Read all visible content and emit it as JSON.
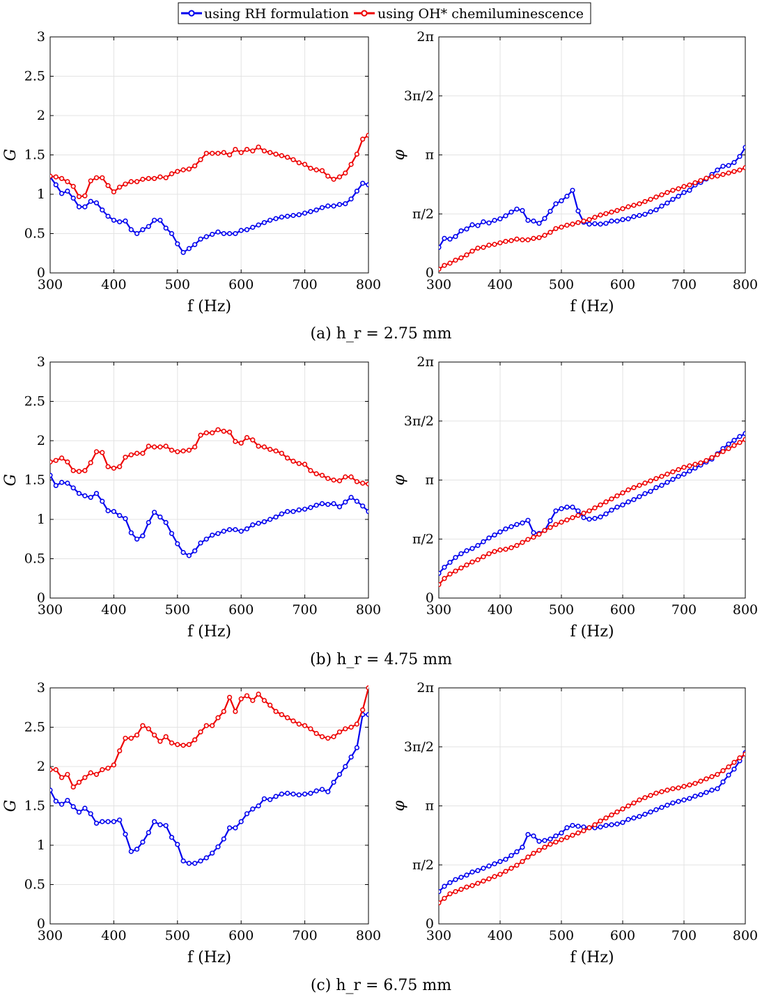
{
  "legend": {
    "items": [
      {
        "label": "using RH formulation",
        "color": "#0000ee"
      },
      {
        "label": "using OH* chemiluminescence",
        "color": "#ee0000"
      }
    ]
  },
  "captions": [
    "(a) h_r = 2.75 mm",
    "(b) h_r = 4.75 mm",
    "(c) h_r = 6.75 mm"
  ],
  "chart_data": [
    {
      "type": "line",
      "panel": "a-gain",
      "xlabel": "f (Hz)",
      "ylabel": "G",
      "xlim": [
        300,
        800
      ],
      "ylim": [
        0,
        3
      ],
      "xticks": [
        "300",
        "400",
        "500",
        "600",
        "700",
        "800"
      ],
      "yticks": [
        "0",
        "0.5",
        "1",
        "1.5",
        "2",
        "2.5",
        "3"
      ],
      "grid": true,
      "series": [
        {
          "name": "using RH formulation",
          "color": "#0000ee",
          "values": [
            1.22,
            1.12,
            1.01,
            1.04,
            0.95,
            0.84,
            0.84,
            0.91,
            0.89,
            0.8,
            0.72,
            0.67,
            0.65,
            0.66,
            0.55,
            0.5,
            0.55,
            0.59,
            0.67,
            0.67,
            0.57,
            0.5,
            0.37,
            0.26,
            0.31,
            0.36,
            0.43,
            0.46,
            0.49,
            0.52,
            0.5,
            0.5,
            0.5,
            0.54,
            0.55,
            0.58,
            0.61,
            0.64,
            0.67,
            0.69,
            0.71,
            0.72,
            0.73,
            0.74,
            0.76,
            0.78,
            0.8,
            0.83,
            0.85,
            0.85,
            0.87,
            0.88,
            0.94,
            1.04,
            1.14,
            1.12
          ]
        },
        {
          "name": "using OH* chemiluminescence",
          "color": "#ee0000",
          "values": [
            1.23,
            1.22,
            1.2,
            1.16,
            1.1,
            0.97,
            0.98,
            1.17,
            1.21,
            1.21,
            1.11,
            1.03,
            1.09,
            1.13,
            1.16,
            1.16,
            1.19,
            1.2,
            1.2,
            1.22,
            1.21,
            1.26,
            1.29,
            1.31,
            1.32,
            1.36,
            1.44,
            1.52,
            1.52,
            1.52,
            1.53,
            1.5,
            1.57,
            1.53,
            1.57,
            1.55,
            1.6,
            1.55,
            1.53,
            1.51,
            1.49,
            1.47,
            1.44,
            1.4,
            1.38,
            1.33,
            1.31,
            1.3,
            1.23,
            1.19,
            1.22,
            1.27,
            1.38,
            1.51,
            1.7,
            1.75
          ]
        }
      ]
    },
    {
      "type": "line",
      "panel": "a-phase",
      "xlabel": "f (Hz)",
      "ylabel": "φ",
      "xlim": [
        300,
        800
      ],
      "ylim": [
        0,
        6.2832
      ],
      "xticks": [
        "300",
        "400",
        "500",
        "600",
        "700",
        "800"
      ],
      "yticks": [
        "0",
        "π/2",
        "π",
        "3π/2",
        "2π"
      ],
      "grid": true,
      "series": [
        {
          "name": "using RH formulation",
          "color": "#0000ee",
          "values": [
            0.68,
            0.92,
            0.9,
            0.97,
            1.12,
            1.17,
            1.28,
            1.26,
            1.36,
            1.33,
            1.4,
            1.44,
            1.52,
            1.62,
            1.7,
            1.66,
            1.4,
            1.38,
            1.32,
            1.45,
            1.64,
            1.84,
            1.92,
            2.04,
            2.2,
            1.65,
            1.35,
            1.3,
            1.31,
            1.3,
            1.32,
            1.38,
            1.38,
            1.42,
            1.44,
            1.5,
            1.53,
            1.56,
            1.63,
            1.68,
            1.78,
            1.86,
            1.96,
            2.04,
            2.14,
            2.2,
            2.34,
            2.41,
            2.5,
            2.62,
            2.74,
            2.84,
            2.86,
            2.94,
            3.1,
            3.34
          ]
        },
        {
          "name": "using OH* chemiluminescence",
          "color": "#ee0000",
          "values": [
            0.1,
            0.2,
            0.26,
            0.34,
            0.4,
            0.48,
            0.58,
            0.66,
            0.68,
            0.74,
            0.76,
            0.8,
            0.84,
            0.86,
            0.9,
            0.88,
            0.88,
            0.92,
            0.94,
            1.0,
            1.08,
            1.18,
            1.22,
            1.27,
            1.3,
            1.34,
            1.38,
            1.42,
            1.48,
            1.54,
            1.58,
            1.62,
            1.66,
            1.71,
            1.76,
            1.8,
            1.84,
            1.9,
            1.96,
            2.02,
            2.08,
            2.14,
            2.2,
            2.24,
            2.3,
            2.34,
            2.4,
            2.46,
            2.52,
            2.56,
            2.58,
            2.62,
            2.66,
            2.7,
            2.74,
            2.8
          ]
        }
      ]
    },
    {
      "type": "line",
      "panel": "b-gain",
      "xlabel": "f (Hz)",
      "ylabel": "G",
      "xlim": [
        300,
        800
      ],
      "ylim": [
        0,
        3
      ],
      "xticks": [
        "300",
        "400",
        "500",
        "600",
        "700",
        "800"
      ],
      "yticks": [
        "0",
        "0.5",
        "1",
        "1.5",
        "2",
        "2.5",
        "3"
      ],
      "grid": true,
      "series": [
        {
          "name": "using RH formulation",
          "color": "#0000ee",
          "values": [
            1.56,
            1.43,
            1.47,
            1.46,
            1.4,
            1.33,
            1.3,
            1.28,
            1.33,
            1.23,
            1.11,
            1.1,
            1.05,
            1.01,
            0.83,
            0.75,
            0.79,
            0.96,
            1.09,
            1.03,
            0.96,
            0.82,
            0.69,
            0.58,
            0.54,
            0.6,
            0.7,
            0.75,
            0.8,
            0.82,
            0.85,
            0.87,
            0.87,
            0.85,
            0.88,
            0.93,
            0.95,
            0.97,
            1.0,
            1.03,
            1.07,
            1.1,
            1.1,
            1.12,
            1.13,
            1.15,
            1.18,
            1.2,
            1.19,
            1.2,
            1.16,
            1.22,
            1.28,
            1.23,
            1.17,
            1.1
          ]
        },
        {
          "name": "using OH* chemiluminescence",
          "color": "#ee0000",
          "values": [
            1.73,
            1.75,
            1.78,
            1.73,
            1.62,
            1.61,
            1.62,
            1.72,
            1.86,
            1.85,
            1.67,
            1.65,
            1.67,
            1.79,
            1.82,
            1.84,
            1.84,
            1.93,
            1.92,
            1.92,
            1.93,
            1.88,
            1.86,
            1.87,
            1.88,
            1.92,
            2.07,
            2.1,
            2.1,
            2.14,
            2.12,
            2.11,
            1.99,
            1.97,
            2.04,
            2.01,
            1.93,
            1.92,
            1.89,
            1.87,
            1.84,
            1.78,
            1.74,
            1.71,
            1.7,
            1.62,
            1.58,
            1.56,
            1.52,
            1.5,
            1.49,
            1.54,
            1.54,
            1.48,
            1.46,
            1.45
          ]
        }
      ]
    },
    {
      "type": "line",
      "panel": "b-phase",
      "xlabel": "f (Hz)",
      "ylabel": "φ",
      "xlim": [
        300,
        800
      ],
      "ylim": [
        0,
        6.2832
      ],
      "xticks": [
        "300",
        "400",
        "500",
        "600",
        "700",
        "800"
      ],
      "yticks": [
        "0",
        "π/2",
        "π",
        "3π/2",
        "2π"
      ],
      "grid": true,
      "series": [
        {
          "name": "using RH formulation",
          "color": "#0000ee",
          "values": [
            0.66,
            0.82,
            0.95,
            1.08,
            1.18,
            1.26,
            1.32,
            1.4,
            1.5,
            1.6,
            1.68,
            1.76,
            1.84,
            1.9,
            1.96,
            2.0,
            2.07,
            1.74,
            1.72,
            1.8,
            2.06,
            2.32,
            2.38,
            2.42,
            2.42,
            2.32,
            2.14,
            2.1,
            2.12,
            2.16,
            2.24,
            2.34,
            2.42,
            2.48,
            2.56,
            2.62,
            2.7,
            2.78,
            2.84,
            2.94,
            3.0,
            3.08,
            3.16,
            3.24,
            3.3,
            3.38,
            3.46,
            3.54,
            3.62,
            3.7,
            3.84,
            3.98,
            4.1,
            4.2,
            4.3,
            4.38
          ]
        },
        {
          "name": "using OH* chemiluminescence",
          "color": "#ee0000",
          "values": [
            0.36,
            0.52,
            0.64,
            0.72,
            0.8,
            0.88,
            0.96,
            1.02,
            1.1,
            1.18,
            1.24,
            1.28,
            1.3,
            1.34,
            1.4,
            1.48,
            1.56,
            1.62,
            1.7,
            1.8,
            1.88,
            1.96,
            2.02,
            2.08,
            2.14,
            2.2,
            2.26,
            2.32,
            2.4,
            2.48,
            2.56,
            2.64,
            2.72,
            2.8,
            2.88,
            2.94,
            3.0,
            3.06,
            3.12,
            3.18,
            3.24,
            3.3,
            3.36,
            3.42,
            3.48,
            3.52,
            3.56,
            3.6,
            3.66,
            3.74,
            3.82,
            3.9,
            3.98,
            4.06,
            4.14,
            4.22
          ]
        }
      ]
    },
    {
      "type": "line",
      "panel": "c-gain",
      "xlabel": "f (Hz)",
      "ylabel": "G",
      "xlim": [
        300,
        800
      ],
      "ylim": [
        0,
        3
      ],
      "xticks": [
        "300",
        "400",
        "500",
        "600",
        "700",
        "800"
      ],
      "yticks": [
        "0",
        "0.5",
        "1",
        "1.5",
        "2",
        "2.5",
        "3"
      ],
      "grid": true,
      "series": [
        {
          "name": "using RH formulation",
          "color": "#0000ee",
          "values": [
            1.7,
            1.56,
            1.52,
            1.57,
            1.49,
            1.42,
            1.47,
            1.4,
            1.28,
            1.3,
            1.3,
            1.3,
            1.32,
            1.14,
            0.92,
            0.95,
            1.04,
            1.16,
            1.3,
            1.26,
            1.25,
            1.1,
            1.01,
            0.8,
            0.77,
            0.77,
            0.8,
            0.84,
            0.9,
            0.98,
            1.08,
            1.22,
            1.22,
            1.3,
            1.4,
            1.46,
            1.5,
            1.59,
            1.58,
            1.62,
            1.65,
            1.66,
            1.65,
            1.64,
            1.65,
            1.66,
            1.69,
            1.71,
            1.68,
            1.8,
            1.9,
            2.0,
            2.12,
            2.24,
            2.66,
            2.66
          ]
        },
        {
          "name": "using OH* chemiluminescence",
          "color": "#ee0000",
          "values": [
            1.96,
            1.96,
            1.86,
            1.9,
            1.74,
            1.8,
            1.86,
            1.92,
            1.9,
            1.96,
            1.98,
            2.02,
            2.2,
            2.36,
            2.36,
            2.4,
            2.52,
            2.48,
            2.4,
            2.32,
            2.38,
            2.3,
            2.28,
            2.27,
            2.28,
            2.34,
            2.44,
            2.52,
            2.52,
            2.62,
            2.7,
            2.88,
            2.7,
            2.86,
            2.9,
            2.84,
            2.92,
            2.84,
            2.78,
            2.7,
            2.66,
            2.62,
            2.58,
            2.54,
            2.52,
            2.48,
            2.42,
            2.38,
            2.36,
            2.38,
            2.44,
            2.48,
            2.5,
            2.54,
            2.72,
            3.0
          ]
        }
      ]
    },
    {
      "type": "line",
      "panel": "c-phase",
      "xlabel": "f (Hz)",
      "ylabel": "φ",
      "xlim": [
        300,
        800
      ],
      "ylim": [
        0,
        6.2832
      ],
      "xticks": [
        "300",
        "400",
        "500",
        "600",
        "700",
        "800"
      ],
      "yticks": [
        "0",
        "π/2",
        "π",
        "3π/2",
        "2π"
      ],
      "grid": true,
      "series": [
        {
          "name": "using RH formulation",
          "color": "#0000ee",
          "values": [
            0.86,
            1.0,
            1.1,
            1.18,
            1.24,
            1.3,
            1.38,
            1.42,
            1.48,
            1.54,
            1.6,
            1.66,
            1.72,
            1.82,
            1.92,
            2.04,
            2.38,
            2.34,
            2.2,
            2.22,
            2.26,
            2.34,
            2.42,
            2.56,
            2.62,
            2.6,
            2.58,
            2.56,
            2.56,
            2.58,
            2.62,
            2.64,
            2.66,
            2.7,
            2.78,
            2.82,
            2.86,
            2.92,
            2.98,
            3.04,
            3.1,
            3.16,
            3.22,
            3.26,
            3.3,
            3.34,
            3.4,
            3.44,
            3.5,
            3.56,
            3.6,
            3.78,
            3.96,
            4.12,
            4.34,
            4.56
          ]
        },
        {
          "name": "using OH* chemiluminescence",
          "color": "#ee0000",
          "values": [
            0.56,
            0.68,
            0.8,
            0.86,
            0.92,
            0.98,
            1.02,
            1.08,
            1.14,
            1.2,
            1.26,
            1.32,
            1.4,
            1.48,
            1.56,
            1.66,
            1.78,
            1.88,
            1.96,
            2.04,
            2.12,
            2.18,
            2.24,
            2.3,
            2.36,
            2.42,
            2.48,
            2.56,
            2.64,
            2.74,
            2.82,
            2.9,
            2.98,
            3.06,
            3.14,
            3.22,
            3.3,
            3.36,
            3.42,
            3.48,
            3.52,
            3.56,
            3.6,
            3.62,
            3.66,
            3.7,
            3.74,
            3.8,
            3.86,
            3.92,
            3.98,
            4.08,
            4.18,
            4.3,
            4.42,
            4.52
          ]
        }
      ]
    }
  ]
}
